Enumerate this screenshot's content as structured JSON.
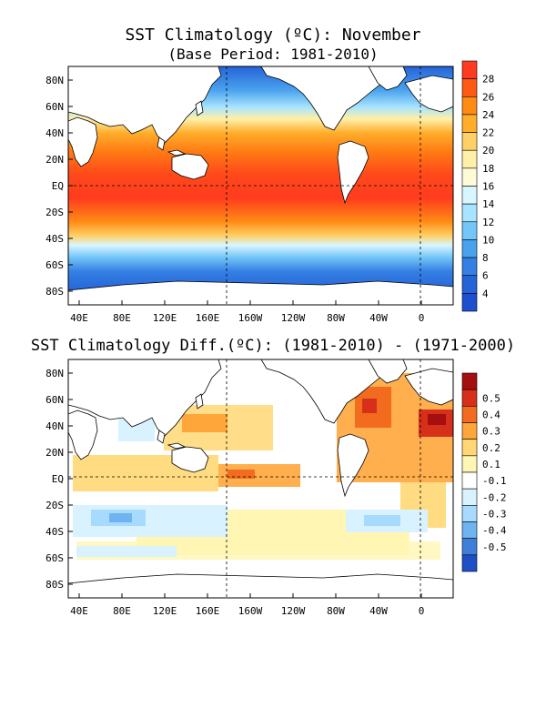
{
  "top_panel": {
    "title": "SST Climatology (ºC): November",
    "subtitle": "(Base Period: 1981-2010)",
    "lat_ticks": [
      "80N",
      "60N",
      "40N",
      "20N",
      "EQ",
      "20S",
      "40S",
      "60S",
      "80S"
    ],
    "lon_ticks": [
      "40E",
      "80E",
      "120E",
      "160E",
      "160W",
      "120W",
      "80W",
      "40W",
      "0"
    ],
    "colorbar_labels": [
      "28",
      "26",
      "24",
      "22",
      "20",
      "18",
      "16",
      "14",
      "12",
      "10",
      "8",
      "6",
      "4"
    ],
    "colorbar_colors": [
      "#ff3b1f",
      "#ff5a14",
      "#ff8a14",
      "#ffad2a",
      "#ffd066",
      "#fff0a8",
      "#fffbd8",
      "#d8f6ff",
      "#a8e4ff",
      "#74c6f8",
      "#4aa2ee",
      "#3480e4",
      "#2563d8",
      "#1e4fcf"
    ]
  },
  "bottom_panel": {
    "title": "SST Climatology Diff.(ºC): (1981-2010) - (1971-2000)",
    "lat_ticks": [
      "80N",
      "60N",
      "40N",
      "20N",
      "EQ",
      "20S",
      "40S",
      "60S",
      "80S"
    ],
    "lon_ticks": [
      "40E",
      "80E",
      "120E",
      "160E",
      "160W",
      "120W",
      "80W",
      "40W",
      "0"
    ],
    "colorbar_labels": [
      "0.5",
      "0.4",
      "0.3",
      "0.2",
      "0.1",
      "-0.1",
      "-0.2",
      "-0.3",
      "-0.4",
      "-0.5"
    ],
    "colorbar_colors": [
      "#a50f0f",
      "#d6301a",
      "#f26b1e",
      "#ffa63a",
      "#ffd774",
      "#fff6b3",
      "#ffffff",
      "#d8f3ff",
      "#a6dbff",
      "#6fb4f0",
      "#3f7fd9",
      "#1f4fc4"
    ]
  }
}
